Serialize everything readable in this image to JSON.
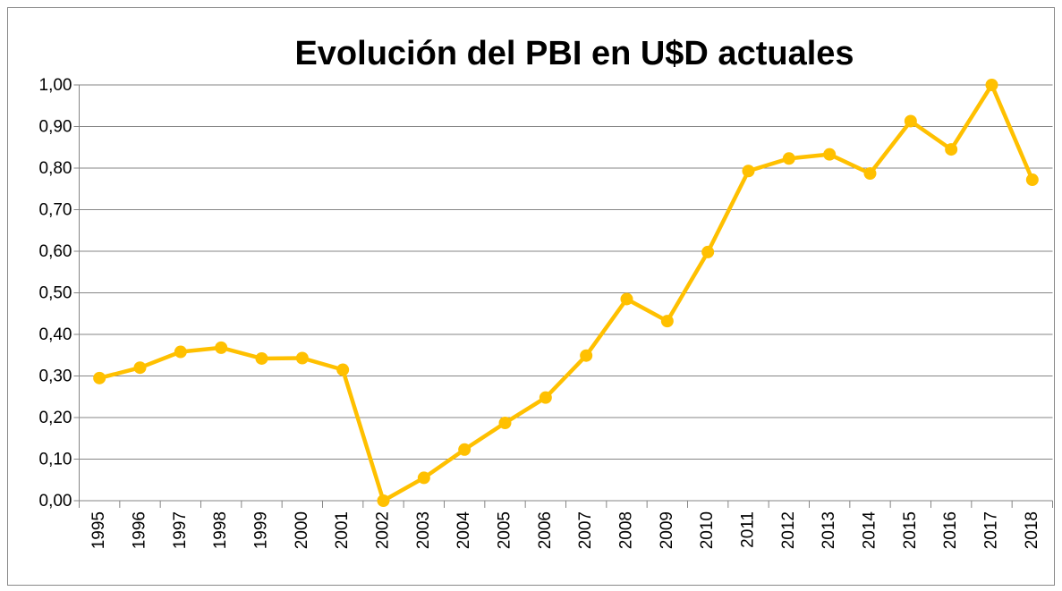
{
  "chart_data": {
    "type": "line",
    "title": "Evolución del PBI en U$D actuales",
    "categories": [
      "1995",
      "1996",
      "1997",
      "1998",
      "1999",
      "2000",
      "2001",
      "2002",
      "2003",
      "2004",
      "2005",
      "2006",
      "2007",
      "2008",
      "2009",
      "2010",
      "2011",
      "2012",
      "2013",
      "2014",
      "2015",
      "2016",
      "2017",
      "2018"
    ],
    "series": [
      {
        "color": "#FFC000",
        "values": [
          0.295,
          0.32,
          0.358,
          0.368,
          0.342,
          0.343,
          0.315,
          0.0,
          0.055,
          0.123,
          0.187,
          0.248,
          0.349,
          0.485,
          0.432,
          0.598,
          0.793,
          0.823,
          0.833,
          0.787,
          0.913,
          0.845,
          1.0,
          0.772
        ]
      }
    ],
    "ylim": [
      0,
      1
    ],
    "yticks": [
      {
        "value": 0,
        "label": "0,00"
      },
      {
        "value": 0.1,
        "label": "0,10"
      },
      {
        "value": 0.2,
        "label": "0,20"
      },
      {
        "value": 0.3,
        "label": "0,30"
      },
      {
        "value": 0.4,
        "label": "0,40"
      },
      {
        "value": 0.5,
        "label": "0,50"
      },
      {
        "value": 0.6,
        "label": "0,60"
      },
      {
        "value": 0.7,
        "label": "0,70"
      },
      {
        "value": 0.8,
        "label": "0,80"
      },
      {
        "value": 0.9,
        "label": "0,90"
      },
      {
        "value": 1,
        "label": "1,00"
      }
    ],
    "grid": true
  }
}
